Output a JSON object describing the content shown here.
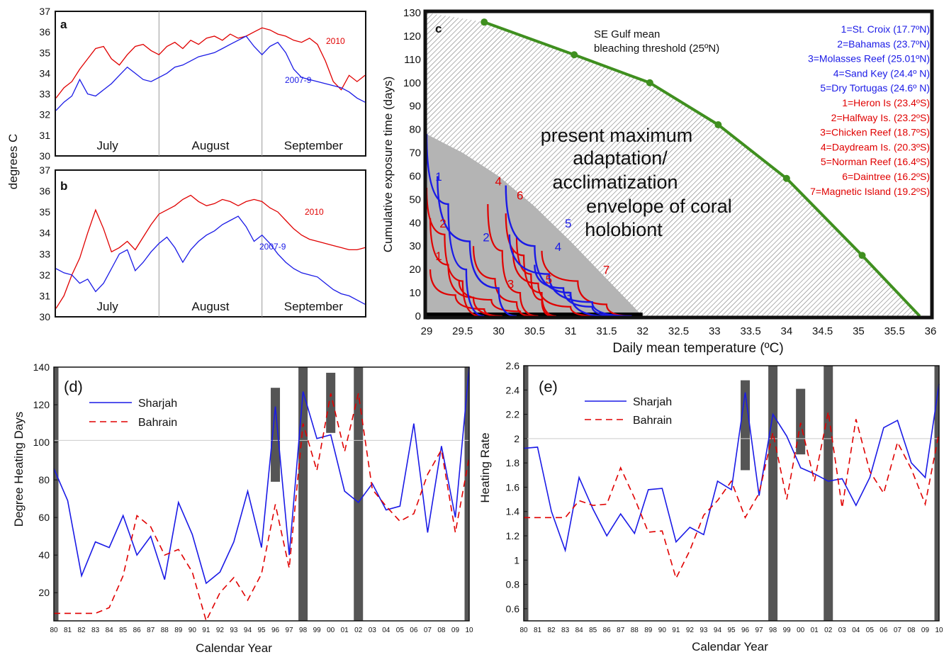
{
  "shared": {
    "ylabel_ab": "degrees C"
  },
  "chart_data": [
    {
      "id": "a",
      "type": "line",
      "panel_label": "a",
      "ylim": [
        30,
        37
      ],
      "yticks": [
        30,
        31,
        32,
        33,
        34,
        35,
        36,
        37
      ],
      "months": [
        "July",
        "August",
        "September"
      ],
      "series": [
        {
          "name": "2010",
          "color": "#e00000",
          "values": [
            32.8,
            33.3,
            33.6,
            34.2,
            34.7,
            35.2,
            35.3,
            34.7,
            34.4,
            34.9,
            35.3,
            35.4,
            35.1,
            34.9,
            35.3,
            35.5,
            35.2,
            35.6,
            35.4,
            35.7,
            35.8,
            35.6,
            35.9,
            35.7,
            35.8,
            36.0,
            36.2,
            36.1,
            35.9,
            35.8,
            35.6,
            35.5,
            35.7,
            35.4,
            34.6,
            33.6,
            33.2,
            33.9,
            33.6,
            33.9
          ]
        },
        {
          "name": "2007-9",
          "color": "#1a1ae6",
          "values": [
            32.2,
            32.6,
            32.9,
            33.7,
            33.0,
            32.9,
            33.2,
            33.5,
            33.9,
            34.3,
            34.0,
            33.7,
            33.6,
            33.8,
            34.0,
            34.3,
            34.4,
            34.6,
            34.8,
            34.9,
            35.0,
            35.2,
            35.4,
            35.6,
            35.8,
            35.3,
            34.9,
            35.3,
            35.5,
            35.0,
            34.2,
            33.8,
            33.7,
            33.6,
            33.5,
            33.4,
            33.3,
            33.1,
            32.8,
            32.6
          ]
        }
      ]
    },
    {
      "id": "b",
      "type": "line",
      "panel_label": "b",
      "ylim": [
        30,
        37
      ],
      "yticks": [
        30,
        31,
        32,
        33,
        34,
        35,
        36,
        37
      ],
      "months": [
        "July",
        "August",
        "September"
      ],
      "series": [
        {
          "name": "2010",
          "color": "#e00000",
          "values": [
            30.4,
            31.0,
            32.0,
            32.8,
            34.0,
            35.1,
            34.2,
            33.1,
            33.3,
            33.6,
            33.2,
            33.8,
            34.4,
            34.9,
            35.1,
            35.3,
            35.6,
            35.8,
            35.5,
            35.3,
            35.4,
            35.6,
            35.5,
            35.3,
            35.5,
            35.6,
            35.5,
            35.2,
            35.0,
            34.6,
            34.2,
            33.9,
            33.7,
            33.6,
            33.5,
            33.4,
            33.3,
            33.2,
            33.2,
            33.3
          ]
        },
        {
          "name": "2007-9",
          "color": "#1a1ae6",
          "values": [
            32.3,
            32.1,
            32.0,
            31.6,
            31.8,
            31.2,
            31.6,
            32.3,
            33.0,
            33.2,
            32.2,
            32.6,
            33.1,
            33.5,
            33.8,
            33.3,
            32.6,
            33.2,
            33.6,
            33.9,
            34.1,
            34.4,
            34.6,
            34.8,
            34.3,
            33.6,
            33.9,
            33.5,
            33.0,
            32.6,
            32.3,
            32.1,
            32.0,
            31.9,
            31.6,
            31.3,
            31.1,
            31.0,
            30.8,
            30.6
          ]
        }
      ]
    },
    {
      "id": "c",
      "type": "line",
      "panel_label": "c",
      "xlabel": "Daily mean temperature (ºC)",
      "ylabel": "Cumulative exposure time (days)",
      "xlim": [
        29,
        36
      ],
      "ylim": [
        0,
        130
      ],
      "xticks": [
        29,
        29.5,
        30,
        30.5,
        31,
        31.5,
        32,
        32.5,
        33,
        33.5,
        34,
        34.5,
        35,
        35.5,
        36
      ],
      "yticks": [
        0,
        10,
        20,
        30,
        40,
        50,
        60,
        70,
        80,
        90,
        100,
        110,
        120,
        130
      ],
      "threshold": {
        "label_line1": "SE Gulf mean",
        "label_line2": "bleaching threshold (25ºN)",
        "color": "#3f8f1f",
        "x": [
          29.8,
          31.05,
          32.1,
          33.05,
          34.0,
          35.05,
          35.85
        ],
        "y": [
          126,
          112,
          100,
          82,
          59,
          26,
          0
        ]
      },
      "envelope_text": [
        "present maximum",
        "adaptation/",
        "acclimatization",
        "envelope of coral",
        "holobiont"
      ],
      "legend_blue": [
        "1=St. Croix (17.7ºN)",
        "2=Bahamas (23.7ºN)",
        "3=Molasses Reef (25.01ºN)",
        "4=Sand Key (24.4º N)",
        "5=Dry Tortugas (24.6º N)"
      ],
      "legend_red": [
        "1=Heron Is (23.4ºS)",
        "2=Halfway Is. (23.2ºS)",
        "3=Chicken Reef (18.7ºS)",
        "4=Daydream Is. (20.3ºS)",
        "5=Norman Reef (16.4ºS)",
        "6=Daintree (16.2ºS)",
        "7=Magnetic Island (19.2ºS)"
      ],
      "curve_labels": [
        {
          "text": "1",
          "color": "blue",
          "x": 29.12,
          "y": 58
        },
        {
          "text": "2",
          "color": "blue",
          "x": 29.78,
          "y": 32
        },
        {
          "text": "3",
          "color": "blue",
          "x": 30.92,
          "y": 7
        },
        {
          "text": "4",
          "color": "blue",
          "x": 30.78,
          "y": 28
        },
        {
          "text": "5",
          "color": "blue",
          "x": 30.92,
          "y": 38
        },
        {
          "text": "1",
          "color": "red",
          "x": 29.12,
          "y": 24
        },
        {
          "text": "2",
          "color": "red",
          "x": 29.18,
          "y": 38
        },
        {
          "text": "3",
          "color": "red",
          "x": 30.12,
          "y": 12
        },
        {
          "text": "4",
          "color": "red",
          "x": 29.95,
          "y": 56
        },
        {
          "text": "5",
          "color": "red",
          "x": 30.65,
          "y": 14
        },
        {
          "text": "6",
          "color": "red",
          "x": 30.25,
          "y": 50
        },
        {
          "text": "7",
          "color": "red",
          "x": 31.45,
          "y": 18
        }
      ],
      "blue_curves": [
        {
          "x": [
            29.0,
            29.3,
            29.55,
            29.8
          ],
          "y": [
            78,
            48,
            20,
            0
          ]
        },
        {
          "x": [
            29.15,
            29.6,
            30.0,
            30.25
          ],
          "y": [
            60,
            32,
            12,
            0
          ]
        },
        {
          "x": [
            30.5,
            30.9,
            31.3,
            31.7
          ],
          "y": [
            22,
            12,
            4,
            0
          ]
        },
        {
          "x": [
            30.15,
            30.7,
            31.3,
            31.85
          ],
          "y": [
            35,
            18,
            6,
            0
          ]
        },
        {
          "x": [
            30.1,
            30.5,
            31.0,
            31.5
          ],
          "y": [
            56,
            30,
            10,
            0
          ]
        }
      ],
      "red_curves": [
        {
          "x": [
            29.05,
            29.4,
            29.8,
            30.05
          ],
          "y": [
            20,
            9,
            3,
            0
          ]
        },
        {
          "x": [
            29.05,
            29.3,
            29.65,
            30.05
          ],
          "y": [
            42,
            22,
            8,
            0
          ]
        },
        {
          "x": [
            29.45,
            29.9,
            30.3,
            30.55
          ],
          "y": [
            15,
            7,
            2,
            0
          ]
        },
        {
          "x": [
            29.85,
            30.05,
            30.3,
            30.55
          ],
          "y": [
            48,
            28,
            10,
            0
          ]
        },
        {
          "x": [
            30.2,
            30.55,
            31.0,
            31.35
          ],
          "y": [
            28,
            14,
            4,
            0
          ]
        },
        {
          "x": [
            30.1,
            30.35,
            30.6,
            30.8
          ],
          "y": [
            44,
            26,
            10,
            0
          ]
        },
        {
          "x": [
            30.6,
            31.1,
            31.5,
            31.85
          ],
          "y": [
            28,
            15,
            5,
            0
          ]
        },
        {
          "x": [
            29.0,
            29.25,
            29.5,
            29.75
          ],
          "y": [
            55,
            35,
            15,
            0
          ]
        },
        {
          "x": [
            29.65,
            29.95,
            30.25,
            30.45
          ],
          "y": [
            30,
            16,
            6,
            0
          ]
        },
        {
          "x": [
            30.25,
            30.45,
            30.6,
            30.75
          ],
          "y": [
            34,
            18,
            7,
            0
          ]
        }
      ]
    },
    {
      "id": "d",
      "type": "line",
      "panel_label": "(d)",
      "xlabel": "Calendar Year",
      "ylabel": "Degree Heating Days",
      "ylim": [
        5,
        140
      ],
      "yticks": [
        20,
        40,
        60,
        80,
        100,
        120,
        140
      ],
      "reference_line": 101,
      "categories": [
        "80",
        "81",
        "82",
        "83",
        "84",
        "85",
        "86",
        "87",
        "88",
        "89",
        "90",
        "91",
        "92",
        "93",
        "94",
        "95",
        "96",
        "97",
        "98",
        "99",
        "00",
        "01",
        "02",
        "03",
        "04",
        "05",
        "06",
        "07",
        "08",
        "09",
        "10"
      ],
      "series": [
        {
          "name": "Sharjah",
          "color": "#1a1ae6",
          "dash": "none",
          "values": [
            86,
            69,
            29,
            47,
            44,
            61,
            40,
            50,
            27,
            68,
            51,
            25,
            31,
            47,
            74,
            44,
            119,
            40,
            127,
            102,
            104,
            74,
            68,
            78,
            64,
            66,
            110,
            52,
            98,
            60,
            140
          ]
        },
        {
          "name": "Bahrain",
          "color": "#e00000",
          "dash": "9,6",
          "values": [
            9,
            9,
            9,
            9,
            12,
            29,
            61,
            55,
            40,
            43,
            31,
            5,
            20,
            28,
            16,
            30,
            67,
            33,
            110,
            85,
            126,
            95,
            126,
            75,
            66,
            58,
            62,
            83,
            96,
            52,
            92
          ]
        }
      ],
      "bars": [
        {
          "year": 80,
          "from": 5,
          "to": 140
        },
        {
          "year": 96,
          "from": 79,
          "to": 129
        },
        {
          "year": 98,
          "from": 5,
          "to": 140
        },
        {
          "year": 100,
          "from": 105,
          "to": 137
        },
        {
          "year": 102,
          "from": 5,
          "to": 140
        },
        {
          "year": 110,
          "from": 5,
          "to": 140
        }
      ]
    },
    {
      "id": "e",
      "type": "line",
      "panel_label": "(e)",
      "xlabel": "Calendar Year",
      "ylabel": "Heating Rate",
      "ylim": [
        0.5,
        2.6
      ],
      "yticks": [
        0.6,
        0.8,
        1,
        1.2,
        1.4,
        1.6,
        1.8,
        2,
        2.2,
        2.4,
        2.6
      ],
      "reference_line": 2.0,
      "categories": [
        "80",
        "81",
        "82",
        "83",
        "84",
        "85",
        "86",
        "87",
        "88",
        "89",
        "90",
        "91",
        "92",
        "93",
        "94",
        "95",
        "96",
        "97",
        "98",
        "99",
        "00",
        "01",
        "02",
        "03",
        "04",
        "05",
        "06",
        "07",
        "08",
        "09",
        "10"
      ],
      "series": [
        {
          "name": "Sharjah",
          "color": "#1a1ae6",
          "dash": "none",
          "values": [
            1.92,
            1.93,
            1.4,
            1.08,
            1.68,
            1.42,
            1.2,
            1.38,
            1.22,
            1.58,
            1.59,
            1.15,
            1.27,
            1.21,
            1.65,
            1.58,
            2.38,
            1.53,
            2.2,
            2.02,
            1.76,
            1.71,
            1.65,
            1.67,
            1.45,
            1.68,
            2.09,
            2.15,
            1.8,
            1.68,
            2.45
          ]
        },
        {
          "name": "Bahrain",
          "color": "#e00000",
          "dash": "9,6",
          "values": [
            1.35,
            1.35,
            1.35,
            1.35,
            1.49,
            1.45,
            1.46,
            1.76,
            1.51,
            1.23,
            1.24,
            0.85,
            1.08,
            1.37,
            1.49,
            1.65,
            1.35,
            1.55,
            2.05,
            1.5,
            2.13,
            1.65,
            2.22,
            1.43,
            2.16,
            1.73,
            1.55,
            1.97,
            1.75,
            1.46,
            2.05
          ]
        }
      ],
      "bars": [
        {
          "year": 80,
          "from": 0.5,
          "to": 2.6
        },
        {
          "year": 96,
          "from": 1.74,
          "to": 2.48
        },
        {
          "year": 98,
          "from": 0.5,
          "to": 2.6
        },
        {
          "year": 100,
          "from": 1.87,
          "to": 2.41
        },
        {
          "year": 102,
          "from": 0.5,
          "to": 2.6
        },
        {
          "year": 110,
          "from": 0.5,
          "to": 2.6
        }
      ]
    }
  ]
}
